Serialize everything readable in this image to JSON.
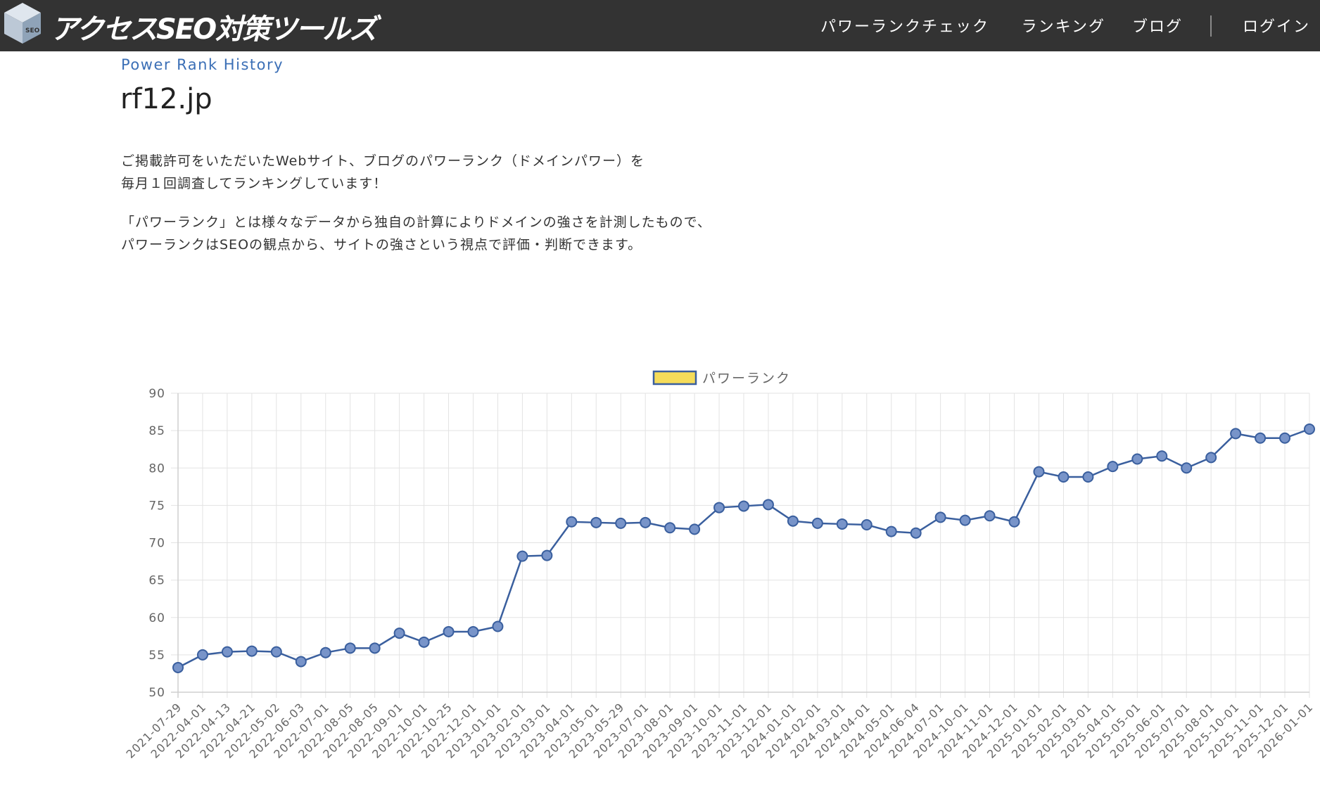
{
  "header": {
    "logo_text": "アクセスSEO対策ツールズ",
    "logo_badge": "SEO",
    "nav": [
      {
        "label": "パワーランクチェック"
      },
      {
        "label": "ランキング"
      },
      {
        "label": "ブログ"
      },
      {
        "label": "ログイン"
      }
    ]
  },
  "page": {
    "subtitle": "Power Rank History",
    "title": "rf12.jp",
    "para1_line1": "ご掲載許可をいただいたWebサイト、ブログのパワーランク（ドメインパワー）を",
    "para1_line2": "毎月１回調査してランキングしています！",
    "para2_line1": "「パワーランク」とは様々なデータから独自の計算によりドメインの強さを計測したもので、",
    "para2_line2": "パワーランクはSEOの観点から、サイトの強さという視点で評価・判断できます。"
  },
  "colors": {
    "header_bg": "#333333",
    "line": "#3a5f9e",
    "point_fill": "#7894c9",
    "legend_fill": "#f5dc5a",
    "subtitle": "#3b6fb6"
  },
  "chart_data": {
    "type": "line",
    "legend": {
      "position": "top-center",
      "entries": [
        "パワーランク"
      ]
    },
    "grid": true,
    "ylim": [
      50,
      90
    ],
    "yticks": [
      50,
      55,
      60,
      65,
      70,
      75,
      80,
      85,
      90
    ],
    "x": [
      "2021-07-29",
      "2022-04-01",
      "2022-04-13",
      "2022-04-21",
      "2022-05-02",
      "2022-06-03",
      "2022-07-01",
      "2022-08-05",
      "2022-08-05",
      "2022-09-01",
      "2022-10-01",
      "2022-10-25",
      "2022-12-01",
      "2023-01-01",
      "2023-02-01",
      "2023-03-01",
      "2023-04-01",
      "2023-05-01",
      "2023-05-29",
      "2023-07-01",
      "2023-08-01",
      "2023-09-01",
      "2023-10-01",
      "2023-11-01",
      "2023-12-01",
      "2024-01-01",
      "2024-02-01",
      "2024-03-01",
      "2024-04-01",
      "2024-05-01",
      "2024-06-04",
      "2024-07-01",
      "2024-10-01",
      "2024-11-01",
      "2024-12-01",
      "2025-01-01",
      "2025-02-01",
      "2025-03-01",
      "2025-04-01",
      "2025-05-01",
      "2025-06-01",
      "2025-07-01",
      "2025-08-01",
      "2025-10-01",
      "2025-11-01",
      "2025-12-01",
      "2026-01-01"
    ],
    "series": [
      {
        "name": "パワーランク",
        "values": [
          53.3,
          55.0,
          55.4,
          55.5,
          55.4,
          54.1,
          55.3,
          55.9,
          55.9,
          57.9,
          56.7,
          58.1,
          58.1,
          58.8,
          68.2,
          68.3,
          72.8,
          72.7,
          72.6,
          72.7,
          72.0,
          71.8,
          74.7,
          74.9,
          75.1,
          72.9,
          72.6,
          72.5,
          72.4,
          71.5,
          71.3,
          73.4,
          73.0,
          73.6,
          72.8,
          79.5,
          78.8,
          78.8,
          80.2,
          81.2,
          81.6,
          80.0,
          81.4,
          84.6,
          84.0,
          84.0,
          85.2
        ]
      }
    ]
  }
}
